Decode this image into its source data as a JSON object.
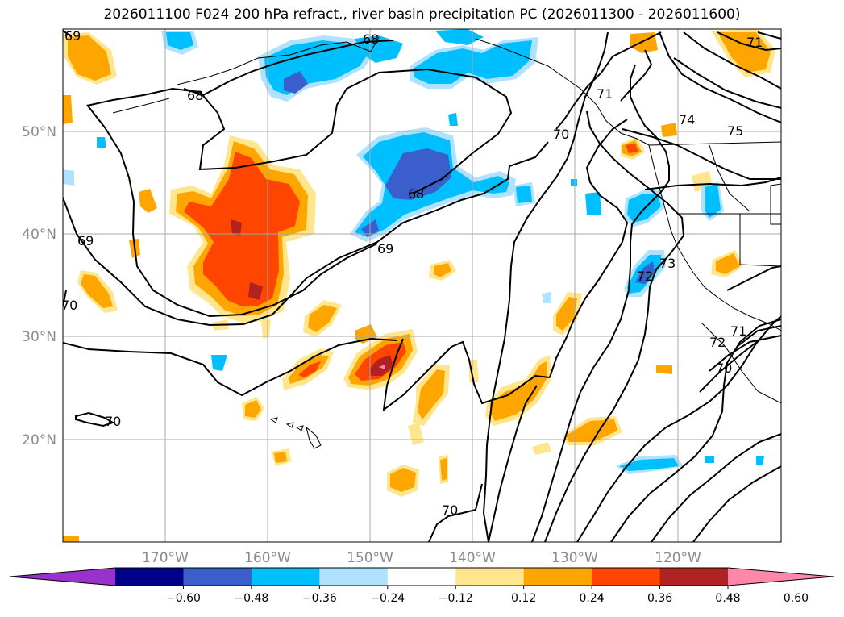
{
  "title": "2026011100 F024 200 hPa refract., river basin precipitation PC (2026011300 - 2026011600)",
  "lon_labels": [
    "170°W",
    "160°W",
    "150°W",
    "140°W",
    "130°W",
    "120°W"
  ],
  "lat_labels": [
    "50°N",
    "40°N",
    "30°N",
    "20°N"
  ],
  "colorbar": {
    "ticks": [
      "−0.60",
      "−0.48",
      "−0.36",
      "−0.24",
      "−0.12",
      "0.12",
      "0.24",
      "0.36",
      "0.48",
      "0.60"
    ],
    "colors": [
      "#9932cc",
      "#00008b",
      "#3a5fcd",
      "#00bfff",
      "#b0e2ff",
      "#ffffff",
      "#ffe68c",
      "#ffa500",
      "#ff4500",
      "#b22222",
      "#ff88aa"
    ]
  },
  "contour_labels": [
    "69",
    "68",
    "68",
    "68",
    "69",
    "69",
    "70",
    "70",
    "70",
    "71",
    "74",
    "75",
    "72",
    "73",
    "72",
    "71",
    "70",
    "70",
    "71"
  ]
}
